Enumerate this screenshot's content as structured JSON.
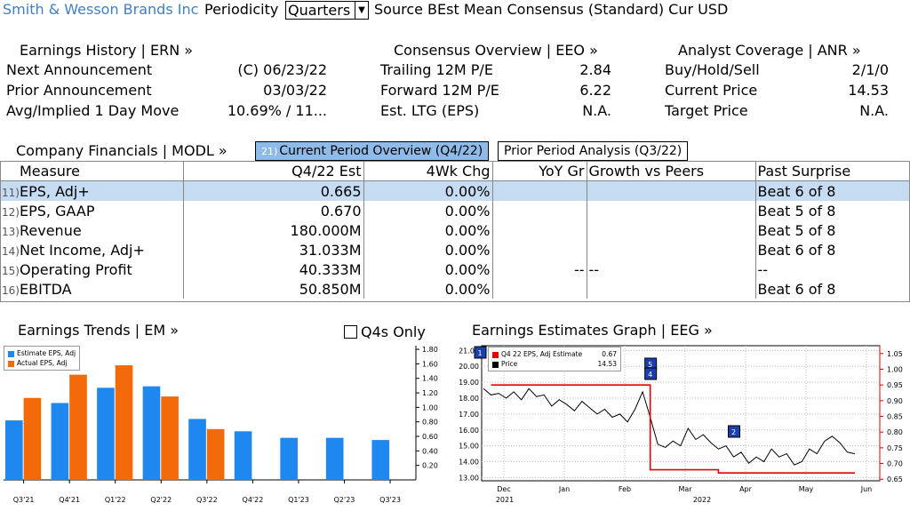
{
  "header": {
    "company": "Smith & Wesson Brands Inc",
    "periodicity_label": "Periodicity",
    "periodicity_value": "Quarters",
    "source_text": "Source BEst Mean Consensus (Standard) Cur USD"
  },
  "earnings_history": {
    "title": "Earnings History | ERN »",
    "rows": [
      {
        "label": "Next Announcement",
        "value": "(C)  06/23/22"
      },
      {
        "label": "Prior Announcement",
        "value": "03/03/22"
      },
      {
        "label": "Avg/Implied 1 Day Move",
        "value": "10.69% / 11..."
      }
    ]
  },
  "consensus": {
    "title": "Consensus Overview | EEO »",
    "rows": [
      {
        "label": "Trailing 12M P/E",
        "value": "2.84"
      },
      {
        "label": "Forward 12M P/E",
        "value": "6.22"
      },
      {
        "label": "Est. LTG (EPS)",
        "value": "N.A."
      }
    ]
  },
  "analyst": {
    "title": "Analyst Coverage | ANR »",
    "rows": [
      {
        "label": "Buy/Hold/Sell",
        "value": "2/1/0"
      },
      {
        "label": "Current Price",
        "value": "14.53"
      },
      {
        "label": "Target Price",
        "value": "N.A."
      }
    ]
  },
  "financials": {
    "title": "Company Financials | MODL »",
    "tab_active_num": "21)",
    "tab_active": "Current Period Overview (Q4/22)",
    "tab_prior": "Prior Period Analysis (Q3/22)",
    "columns": [
      "Measure",
      "Q4/22 Est",
      "4Wk Chg",
      "YoY Gr",
      "Growth vs Peers",
      "Past Surprise"
    ],
    "rows": [
      {
        "idx": "11)",
        "measure": "EPS, Adj+",
        "est": "0.665",
        "chg": "0.00%",
        "yoy": "",
        "peers": "",
        "surprise": "Beat 6 of 8"
      },
      {
        "idx": "12)",
        "measure": "EPS, GAAP",
        "est": "0.670",
        "chg": "0.00%",
        "yoy": "",
        "peers": "",
        "surprise": "Beat 5 of 8"
      },
      {
        "idx": "13)",
        "measure": "Revenue",
        "est": "180.000M",
        "chg": "0.00%",
        "yoy": "",
        "peers": "",
        "surprise": "Beat 5 of 8"
      },
      {
        "idx": "14)",
        "measure": "Net Income, Adj+",
        "est": "31.033M",
        "chg": "0.00%",
        "yoy": "",
        "peers": "",
        "surprise": "Beat 6 of 8"
      },
      {
        "idx": "15)",
        "measure": "Operating Profit",
        "est": "40.333M",
        "chg": "0.00%",
        "yoy": "--",
        "peers": "--",
        "surprise": "--"
      },
      {
        "idx": "16)",
        "measure": "EBITDA",
        "est": "50.850M",
        "chg": "0.00%",
        "yoy": "",
        "peers": "",
        "surprise": "Beat 6 of 8"
      }
    ]
  },
  "trends": {
    "title": "Earnings Trends | EM »",
    "q4s_only": "Q4s Only",
    "legend_estimate": "Estimate EPS, Adj",
    "legend_actual": "Actual EPS, Adj",
    "color_estimate": "#1e88f0",
    "color_actual": "#f26a0a"
  },
  "graph": {
    "title": "Earnings Estimates Graph | EEG »",
    "legend_estimate_label": "Q4 22 EPS, Adj Estimate",
    "legend_estimate_value": "0.67",
    "legend_price_label": "Price",
    "legend_price_value": "14.53",
    "markers": [
      "1",
      "5",
      "4",
      "2"
    ],
    "year_left": "2021",
    "year_mid": "2022"
  },
  "chart_data": [
    {
      "type": "bar",
      "categories": [
        "Q3'21",
        "Q4'21",
        "Q1'22",
        "Q2'22",
        "Q3'22",
        "Q4'22",
        "Q1'23",
        "Q2'23",
        "Q3'23"
      ],
      "series": [
        {
          "name": "Estimate EPS, Adj",
          "values": [
            0.82,
            1.06,
            1.27,
            1.29,
            0.84,
            0.67,
            0.58,
            0.58,
            0.55
          ]
        },
        {
          "name": "Actual EPS, Adj",
          "values": [
            1.13,
            1.45,
            1.58,
            1.15,
            0.7,
            null,
            null,
            null,
            null
          ]
        }
      ],
      "yticks": [
        "1.80",
        "1.60",
        "1.40",
        "1.20",
        "1.00",
        "0.80",
        "0.60",
        "0.40",
        "0.20"
      ],
      "ylim": [
        0.0,
        1.85
      ]
    },
    {
      "type": "line",
      "x_ticks": [
        "Dec",
        "Jan",
        "Feb",
        "Mar",
        "Apr",
        "May",
        "Jun"
      ],
      "y_left_ticks": [
        "21.00",
        "20.00",
        "19.00",
        "18.00",
        "17.00",
        "16.00",
        "15.00",
        "14.00",
        "13.00"
      ],
      "y_right_ticks": [
        "1.05",
        "1.00",
        "0.95",
        "0.90",
        "0.85",
        "0.80",
        "0.75",
        "0.70",
        "0.65"
      ],
      "series": [
        {
          "name": "Price",
          "axis": "left",
          "values": [
            18.6,
            18.2,
            18.3,
            18.0,
            18.4,
            17.9,
            18.6,
            18.1,
            18.2,
            17.5,
            17.9,
            17.6,
            17.2,
            17.8,
            17.4,
            17.0,
            17.3,
            16.8,
            17.0,
            16.5,
            17.3,
            18.4,
            16.8,
            15.1,
            14.9,
            15.3,
            15.0,
            16.1,
            15.4,
            15.7,
            15.2,
            14.8,
            15.0,
            14.3,
            14.6,
            13.9,
            14.3,
            14.0,
            14.8,
            14.3,
            14.5,
            13.8,
            14.0,
            14.8,
            14.5,
            15.3,
            15.6,
            15.2,
            14.6,
            14.5
          ]
        },
        {
          "name": "Q4 22 EPS, Adj Estimate",
          "axis": "right",
          "values": [
            0.95,
            0.95,
            0.95,
            0.95,
            0.95,
            0.95,
            0.95,
            0.95,
            0.95,
            0.95,
            0.95,
            0.95,
            0.95,
            0.95,
            0.95,
            0.95,
            0.95,
            0.95,
            0.95,
            0.95,
            0.95,
            0.95,
            0.68,
            0.68,
            0.68,
            0.68,
            0.68,
            0.68,
            0.68,
            0.68,
            0.68,
            0.67,
            0.67,
            0.67,
            0.67,
            0.67,
            0.67,
            0.67,
            0.67,
            0.67,
            0.67,
            0.67,
            0.67,
            0.67,
            0.67,
            0.67,
            0.67,
            0.67,
            0.67,
            0.67
          ]
        }
      ],
      "ylim_left": [
        12.8,
        21.3
      ],
      "ylim_right": [
        0.645,
        1.075
      ]
    }
  ]
}
